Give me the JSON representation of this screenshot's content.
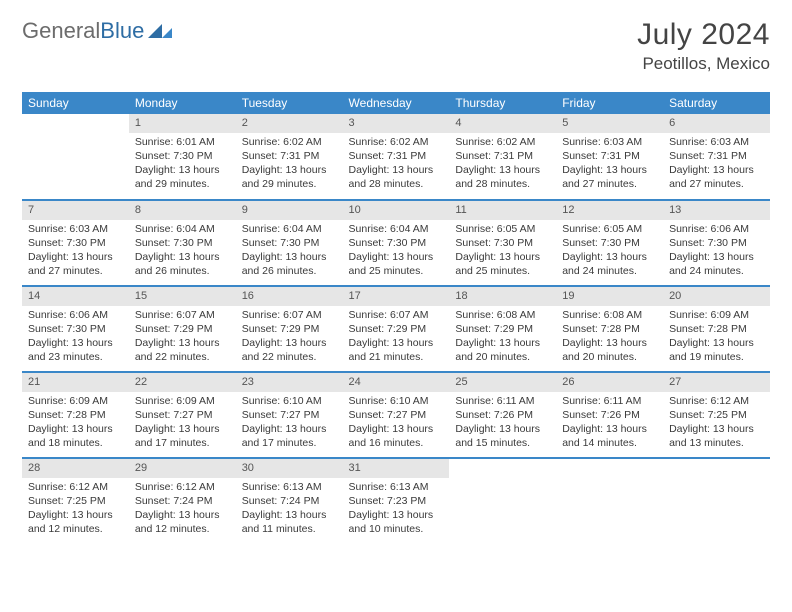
{
  "brand": {
    "part1": "General",
    "part2": "Blue"
  },
  "title": "July 2024",
  "location": "Peotillos, Mexico",
  "colors": {
    "header_bg": "#3a87c8",
    "header_text": "#ffffff",
    "daynum_bg": "#e6e6e6",
    "border": "#3a87c8",
    "text": "#3a3a3a",
    "brand_gray": "#6c6c6c",
    "brand_blue": "#2e6da4"
  },
  "weekdays": [
    "Sunday",
    "Monday",
    "Tuesday",
    "Wednesday",
    "Thursday",
    "Friday",
    "Saturday"
  ],
  "weeks": [
    [
      null,
      {
        "n": "1",
        "sr": "Sunrise: 6:01 AM",
        "ss": "Sunset: 7:30 PM",
        "dl": "Daylight: 13 hours and 29 minutes."
      },
      {
        "n": "2",
        "sr": "Sunrise: 6:02 AM",
        "ss": "Sunset: 7:31 PM",
        "dl": "Daylight: 13 hours and 29 minutes."
      },
      {
        "n": "3",
        "sr": "Sunrise: 6:02 AM",
        "ss": "Sunset: 7:31 PM",
        "dl": "Daylight: 13 hours and 28 minutes."
      },
      {
        "n": "4",
        "sr": "Sunrise: 6:02 AM",
        "ss": "Sunset: 7:31 PM",
        "dl": "Daylight: 13 hours and 28 minutes."
      },
      {
        "n": "5",
        "sr": "Sunrise: 6:03 AM",
        "ss": "Sunset: 7:31 PM",
        "dl": "Daylight: 13 hours and 27 minutes."
      },
      {
        "n": "6",
        "sr": "Sunrise: 6:03 AM",
        "ss": "Sunset: 7:31 PM",
        "dl": "Daylight: 13 hours and 27 minutes."
      }
    ],
    [
      {
        "n": "7",
        "sr": "Sunrise: 6:03 AM",
        "ss": "Sunset: 7:30 PM",
        "dl": "Daylight: 13 hours and 27 minutes."
      },
      {
        "n": "8",
        "sr": "Sunrise: 6:04 AM",
        "ss": "Sunset: 7:30 PM",
        "dl": "Daylight: 13 hours and 26 minutes."
      },
      {
        "n": "9",
        "sr": "Sunrise: 6:04 AM",
        "ss": "Sunset: 7:30 PM",
        "dl": "Daylight: 13 hours and 26 minutes."
      },
      {
        "n": "10",
        "sr": "Sunrise: 6:04 AM",
        "ss": "Sunset: 7:30 PM",
        "dl": "Daylight: 13 hours and 25 minutes."
      },
      {
        "n": "11",
        "sr": "Sunrise: 6:05 AM",
        "ss": "Sunset: 7:30 PM",
        "dl": "Daylight: 13 hours and 25 minutes."
      },
      {
        "n": "12",
        "sr": "Sunrise: 6:05 AM",
        "ss": "Sunset: 7:30 PM",
        "dl": "Daylight: 13 hours and 24 minutes."
      },
      {
        "n": "13",
        "sr": "Sunrise: 6:06 AM",
        "ss": "Sunset: 7:30 PM",
        "dl": "Daylight: 13 hours and 24 minutes."
      }
    ],
    [
      {
        "n": "14",
        "sr": "Sunrise: 6:06 AM",
        "ss": "Sunset: 7:30 PM",
        "dl": "Daylight: 13 hours and 23 minutes."
      },
      {
        "n": "15",
        "sr": "Sunrise: 6:07 AM",
        "ss": "Sunset: 7:29 PM",
        "dl": "Daylight: 13 hours and 22 minutes."
      },
      {
        "n": "16",
        "sr": "Sunrise: 6:07 AM",
        "ss": "Sunset: 7:29 PM",
        "dl": "Daylight: 13 hours and 22 minutes."
      },
      {
        "n": "17",
        "sr": "Sunrise: 6:07 AM",
        "ss": "Sunset: 7:29 PM",
        "dl": "Daylight: 13 hours and 21 minutes."
      },
      {
        "n": "18",
        "sr": "Sunrise: 6:08 AM",
        "ss": "Sunset: 7:29 PM",
        "dl": "Daylight: 13 hours and 20 minutes."
      },
      {
        "n": "19",
        "sr": "Sunrise: 6:08 AM",
        "ss": "Sunset: 7:28 PM",
        "dl": "Daylight: 13 hours and 20 minutes."
      },
      {
        "n": "20",
        "sr": "Sunrise: 6:09 AM",
        "ss": "Sunset: 7:28 PM",
        "dl": "Daylight: 13 hours and 19 minutes."
      }
    ],
    [
      {
        "n": "21",
        "sr": "Sunrise: 6:09 AM",
        "ss": "Sunset: 7:28 PM",
        "dl": "Daylight: 13 hours and 18 minutes."
      },
      {
        "n": "22",
        "sr": "Sunrise: 6:09 AM",
        "ss": "Sunset: 7:27 PM",
        "dl": "Daylight: 13 hours and 17 minutes."
      },
      {
        "n": "23",
        "sr": "Sunrise: 6:10 AM",
        "ss": "Sunset: 7:27 PM",
        "dl": "Daylight: 13 hours and 17 minutes."
      },
      {
        "n": "24",
        "sr": "Sunrise: 6:10 AM",
        "ss": "Sunset: 7:27 PM",
        "dl": "Daylight: 13 hours and 16 minutes."
      },
      {
        "n": "25",
        "sr": "Sunrise: 6:11 AM",
        "ss": "Sunset: 7:26 PM",
        "dl": "Daylight: 13 hours and 15 minutes."
      },
      {
        "n": "26",
        "sr": "Sunrise: 6:11 AM",
        "ss": "Sunset: 7:26 PM",
        "dl": "Daylight: 13 hours and 14 minutes."
      },
      {
        "n": "27",
        "sr": "Sunrise: 6:12 AM",
        "ss": "Sunset: 7:25 PM",
        "dl": "Daylight: 13 hours and 13 minutes."
      }
    ],
    [
      {
        "n": "28",
        "sr": "Sunrise: 6:12 AM",
        "ss": "Sunset: 7:25 PM",
        "dl": "Daylight: 13 hours and 12 minutes."
      },
      {
        "n": "29",
        "sr": "Sunrise: 6:12 AM",
        "ss": "Sunset: 7:24 PM",
        "dl": "Daylight: 13 hours and 12 minutes."
      },
      {
        "n": "30",
        "sr": "Sunrise: 6:13 AM",
        "ss": "Sunset: 7:24 PM",
        "dl": "Daylight: 13 hours and 11 minutes."
      },
      {
        "n": "31",
        "sr": "Sunrise: 6:13 AM",
        "ss": "Sunset: 7:23 PM",
        "dl": "Daylight: 13 hours and 10 minutes."
      },
      null,
      null,
      null
    ]
  ]
}
